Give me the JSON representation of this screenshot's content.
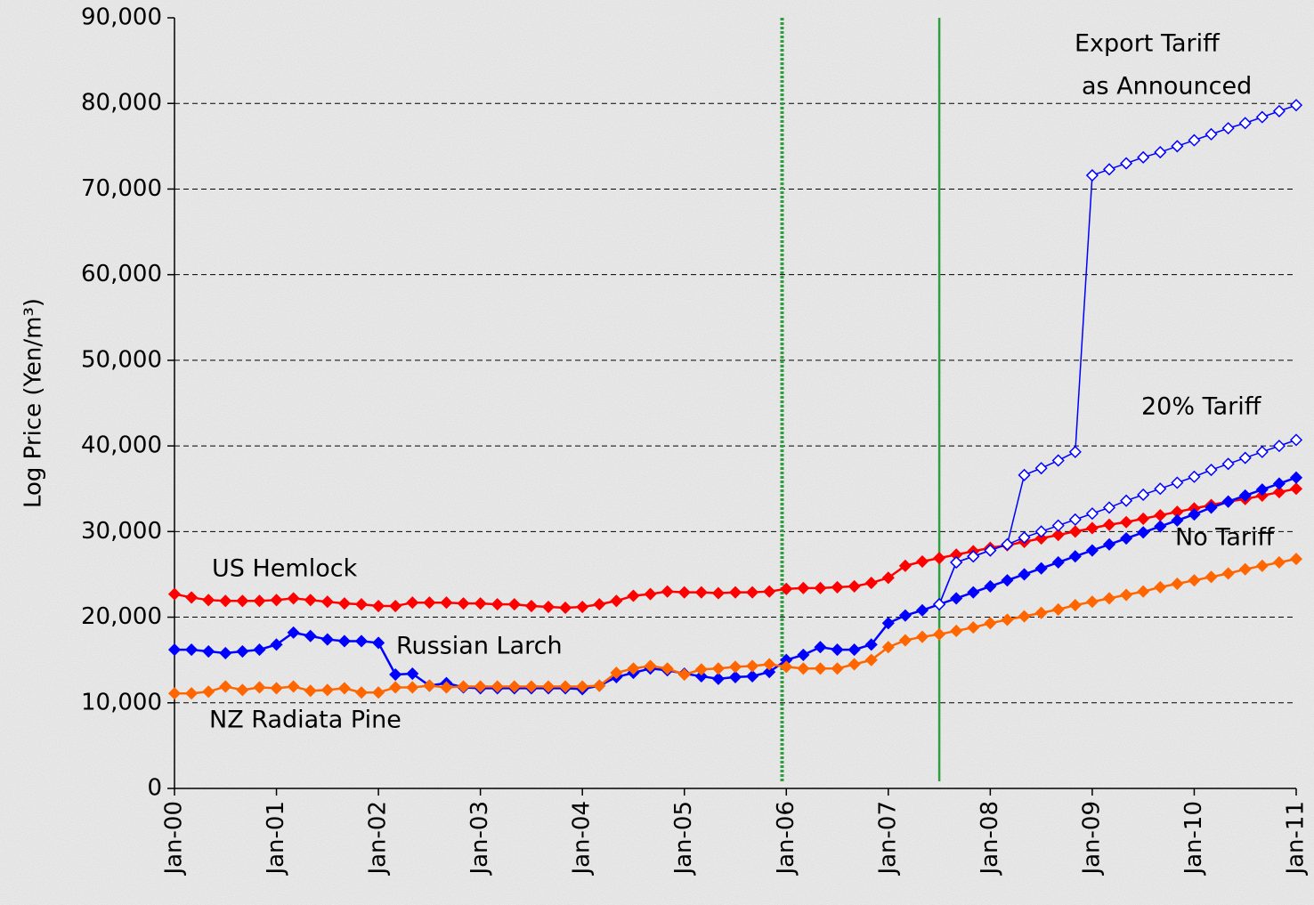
{
  "chart_data": {
    "type": "line",
    "y_label": "Log Price (Yen/m³)",
    "x": [
      0,
      2,
      4,
      6,
      8,
      10,
      12,
      14,
      16,
      18,
      20,
      22,
      24,
      26,
      28,
      30,
      32,
      34,
      36,
      38,
      40,
      42,
      44,
      46,
      48,
      50,
      52,
      54,
      56,
      58,
      60,
      62,
      64,
      66,
      68,
      70,
      72,
      74,
      76,
      78,
      80,
      82,
      84,
      86,
      88,
      90,
      92,
      94,
      96,
      98,
      100,
      102,
      104,
      106,
      108,
      110,
      112,
      114,
      116,
      118,
      120,
      122,
      124,
      126,
      128,
      130,
      132
    ],
    "xlim": [
      0,
      132
    ],
    "xticks": [
      {
        "value": 0,
        "label": "Jan-00"
      },
      {
        "value": 12,
        "label": "Jan-01"
      },
      {
        "value": 24,
        "label": "Jan-02"
      },
      {
        "value": 36,
        "label": "Jan-03"
      },
      {
        "value": 48,
        "label": "Jan-04"
      },
      {
        "value": 60,
        "label": "Jan-05"
      },
      {
        "value": 72,
        "label": "Jan-06"
      },
      {
        "value": 84,
        "label": "Jan-07"
      },
      {
        "value": 96,
        "label": "Jan-08"
      },
      {
        "value": 108,
        "label": "Jan-09"
      },
      {
        "value": 120,
        "label": "Jan-10"
      },
      {
        "value": 132,
        "label": "Jan-11"
      }
    ],
    "ylim": [
      0,
      90000
    ],
    "yticks": [
      0,
      {
        "value": 10000,
        "label": "10,000"
      },
      {
        "value": 20000,
        "label": "20,000"
      },
      {
        "value": 30000,
        "label": "30,000"
      },
      {
        "value": 40000,
        "label": "40,000"
      },
      {
        "value": 50000,
        "label": "50,000"
      },
      {
        "value": 60000,
        "label": "60,000"
      },
      {
        "value": 70000,
        "label": "70,000"
      },
      {
        "value": 80000,
        "label": "80,000"
      },
      {
        "value": 90000,
        "label": "90,000"
      }
    ],
    "grid": true,
    "vlines": [
      {
        "value": 71.5,
        "color": "#2e9e40",
        "style": "dotted"
      },
      {
        "value": 90,
        "color": "#2e9e40",
        "style": "solid"
      }
    ],
    "series": [
      {
        "name": "US Hemlock",
        "color": "#ff0000",
        "marker": "filled",
        "values": [
          22700,
          22300,
          22000,
          21900,
          21900,
          21900,
          22000,
          22200,
          22000,
          21800,
          21600,
          21500,
          21300,
          21300,
          21700,
          21700,
          21700,
          21600,
          21600,
          21500,
          21500,
          21300,
          21200,
          21100,
          21200,
          21500,
          21900,
          22500,
          22700,
          23000,
          22900,
          22900,
          22800,
          22900,
          22900,
          23000,
          23300,
          23400,
          23400,
          23500,
          23600,
          24000,
          24600,
          26000,
          26500,
          26900,
          27300,
          27700,
          28100,
          28400,
          28800,
          29200,
          29600,
          30000,
          30400,
          30800,
          31100,
          31500,
          31900,
          32300,
          32700,
          33100,
          33500,
          33800,
          34200,
          34600,
          35000
        ]
      },
      {
        "name": "Russian Larch",
        "color": "#0000ff",
        "marker": "filled",
        "values": [
          16200,
          16200,
          16000,
          15800,
          16000,
          16200,
          16800,
          18200,
          17800,
          17400,
          17200,
          17200,
          17000,
          13300,
          13400,
          12000,
          12300,
          11800,
          11700,
          11700,
          11700,
          11700,
          11700,
          11700,
          11600,
          12000,
          13000,
          13500,
          14000,
          13800,
          13400,
          13100,
          12800,
          13000,
          13100,
          13600,
          15000,
          15600,
          16500,
          16200,
          16200,
          16800,
          19300,
          20200,
          20800,
          21500,
          22200,
          22900,
          23600,
          24300,
          25000,
          25700,
          26400,
          27100,
          27800,
          28500,
          29200,
          29900,
          30600,
          31300,
          32000,
          32800,
          33500,
          34200,
          34900,
          35600,
          36300
        ]
      },
      {
        "name": "NZ Radiata Pine",
        "color": "#ff6600",
        "marker": "filled",
        "values": [
          11100,
          11100,
          11300,
          11900,
          11500,
          11800,
          11700,
          11900,
          11400,
          11500,
          11700,
          11200,
          11200,
          11800,
          11800,
          12000,
          11800,
          11900,
          11900,
          11900,
          11900,
          11900,
          11900,
          11900,
          11900,
          12000,
          13500,
          14000,
          14300,
          14000,
          13300,
          13900,
          14000,
          14200,
          14300,
          14500,
          14200,
          14000,
          14000,
          14000,
          14500,
          15000,
          16500,
          17300,
          17700,
          18000,
          18400,
          18800,
          19300,
          19700,
          20100,
          20500,
          20900,
          21400,
          21800,
          22200,
          22600,
          23000,
          23500,
          23900,
          24300,
          24700,
          25100,
          25600,
          26000,
          26400,
          26800
        ]
      },
      {
        "name": "20% Tariff",
        "color": "#0000ff",
        "marker": "hollow",
        "values": [
          null,
          null,
          null,
          null,
          null,
          null,
          null,
          null,
          null,
          null,
          null,
          null,
          null,
          null,
          null,
          null,
          null,
          null,
          null,
          null,
          null,
          null,
          null,
          null,
          null,
          null,
          null,
          null,
          null,
          null,
          null,
          null,
          null,
          null,
          null,
          null,
          null,
          null,
          null,
          null,
          null,
          null,
          null,
          null,
          null,
          21500,
          26400,
          27100,
          27800,
          28500,
          29300,
          30000,
          30700,
          31400,
          32100,
          32800,
          33600,
          34300,
          35000,
          35700,
          36400,
          37200,
          37900,
          38600,
          39300,
          40000,
          40700
        ]
      },
      {
        "color": "#0000ff",
        "marker": "hollow",
        "values": [
          null,
          null,
          null,
          null,
          null,
          null,
          null,
          null,
          null,
          null,
          null,
          null,
          null,
          null,
          null,
          null,
          null,
          null,
          null,
          null,
          null,
          null,
          null,
          null,
          null,
          null,
          null,
          null,
          null,
          null,
          null,
          null,
          null,
          null,
          null,
          null,
          null,
          null,
          null,
          null,
          null,
          null,
          null,
          null,
          null,
          21500,
          26400,
          27100,
          27800,
          28500,
          36600,
          37400,
          38300,
          39300,
          71600,
          72300,
          73000,
          73700,
          74300,
          75000,
          75700,
          76400,
          77100,
          77700,
          78400,
          79100,
          79800
        ]
      }
    ],
    "annotations": [
      "Export Tariff",
      "as Announced",
      "No Tariff"
    ]
  }
}
